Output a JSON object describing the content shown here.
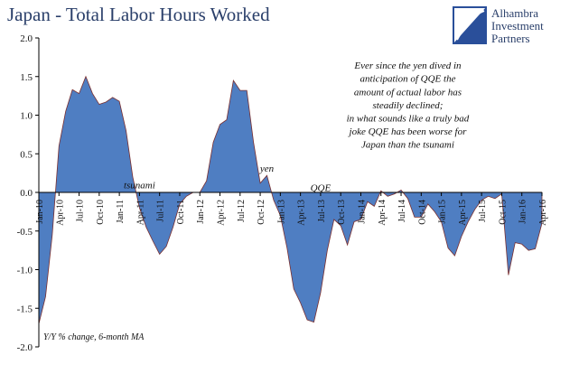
{
  "chart_data": {
    "type": "area",
    "title": "Japan - Total Labor Hours Worked",
    "subtitle": "",
    "ylabel_note": "Y/Y % change, 6-month MA",
    "ylim": [
      -2.0,
      2.0
    ],
    "yticks": [
      2.0,
      1.5,
      1.0,
      0.5,
      0.0,
      -0.5,
      -1.0,
      -1.5,
      -2.0
    ],
    "ytick_labels": [
      "2.0",
      "1.5",
      "1.0",
      "0.5",
      "0.0",
      "-0.5",
      "-1.0",
      "-1.5",
      "-2.0"
    ],
    "xtick_labels": [
      "Jan-10",
      "Apr-10",
      "Jul-10",
      "Oct-10",
      "Jan-11",
      "Apr-11",
      "Jul-11",
      "Oct-11",
      "Jan-12",
      "Apr-12",
      "Jul-12",
      "Oct-12",
      "Jan-13",
      "Apr-13",
      "Jul-13",
      "Oct-13",
      "Jan-14",
      "Apr-14",
      "Jul-14",
      "Oct-14",
      "Jan-15",
      "Apr-15",
      "Jul-15",
      "Oct-15",
      "Jan-16",
      "Apr-16"
    ],
    "x": [
      "Jan-10",
      "Feb-10",
      "Mar-10",
      "Apr-10",
      "May-10",
      "Jun-10",
      "Jul-10",
      "Aug-10",
      "Sep-10",
      "Oct-10",
      "Nov-10",
      "Dec-10",
      "Jan-11",
      "Feb-11",
      "Mar-11",
      "Apr-11",
      "May-11",
      "Jun-11",
      "Jul-11",
      "Aug-11",
      "Sep-11",
      "Oct-11",
      "Nov-11",
      "Dec-11",
      "Jan-12",
      "Feb-12",
      "Mar-12",
      "Apr-12",
      "May-12",
      "Jun-12",
      "Jul-12",
      "Aug-12",
      "Sep-12",
      "Oct-12",
      "Nov-12",
      "Dec-12",
      "Jan-13",
      "Feb-13",
      "Mar-13",
      "Apr-13",
      "May-13",
      "Jun-13",
      "Jul-13",
      "Aug-13",
      "Sep-13",
      "Oct-13",
      "Nov-13",
      "Dec-13",
      "Jan-14",
      "Feb-14",
      "Mar-14",
      "Apr-14",
      "May-14",
      "Jun-14",
      "Jul-14",
      "Aug-14",
      "Sep-14",
      "Oct-14",
      "Nov-14",
      "Dec-14",
      "Jan-15",
      "Feb-15",
      "Mar-15",
      "Apr-15",
      "May-15",
      "Jun-15",
      "Jul-15",
      "Aug-15",
      "Sep-15",
      "Oct-15",
      "Nov-15",
      "Dec-15",
      "Jan-16",
      "Feb-16",
      "Mar-16",
      "Apr-16"
    ],
    "series": [
      {
        "values": [
          -1.7,
          -1.35,
          -0.55,
          0.6,
          1.05,
          1.33,
          1.28,
          1.5,
          1.28,
          1.14,
          1.17,
          1.23,
          1.18,
          0.8,
          0.2,
          -0.2,
          -0.45,
          -0.63,
          -0.8,
          -0.7,
          -0.45,
          -0.15,
          -0.05,
          0.0,
          0.0,
          0.15,
          0.65,
          0.88,
          0.94,
          1.45,
          1.32,
          1.32,
          0.65,
          0.12,
          0.22,
          -0.1,
          -0.3,
          -0.72,
          -1.25,
          -1.43,
          -1.65,
          -1.68,
          -1.3,
          -0.75,
          -0.35,
          -0.43,
          -0.68,
          -0.38,
          -0.35,
          -0.12,
          -0.18,
          0.02,
          -0.05,
          -0.02,
          0.03,
          -0.08,
          -0.32,
          -0.32,
          -0.15,
          -0.25,
          -0.38,
          -0.72,
          -0.82,
          -0.57,
          -0.38,
          -0.22,
          -0.1,
          -0.05,
          -0.08,
          -0.02,
          -1.07,
          -0.65,
          -0.67,
          -0.75,
          -0.73,
          -0.4
        ]
      }
    ],
    "annotations": [
      {
        "text": "tsunami",
        "x": "Apr-11",
        "y": 0.05
      },
      {
        "text": "yen",
        "x": "Nov-12",
        "y": 0.27
      },
      {
        "text": "QQE",
        "x": "Jul-13",
        "y": 0.02
      },
      {
        "text": "Ever since the yen dived in",
        "x": "Aug-14",
        "y": 1.6
      },
      {
        "text": "anticipation of QQE the",
        "x": "Aug-14",
        "y": 1.43
      },
      {
        "text": "amount of actual labor has",
        "x": "Aug-14",
        "y": 1.26
      },
      {
        "text": "steadily declined;",
        "x": "Aug-14",
        "y": 1.09
      },
      {
        "text": "in what sounds like a truly bad",
        "x": "Aug-14",
        "y": 0.92
      },
      {
        "text": "joke QQE has been worse for",
        "x": "Aug-14",
        "y": 0.75
      },
      {
        "text": "Japan than the tsunami",
        "x": "Aug-14",
        "y": 0.58
      }
    ],
    "colors": {
      "area_fill": "#4f7ec2",
      "area_stroke": "#7a2f2f",
      "title": "#2a3f6a",
      "text": "#111111",
      "axis": "#000000",
      "logo": "#2a4f9a"
    },
    "grid": false,
    "legend": "none"
  },
  "logo": {
    "lines": [
      "Alhambra",
      "Investment",
      "Partners"
    ],
    "icon": "alhambra-logo-icon"
  }
}
